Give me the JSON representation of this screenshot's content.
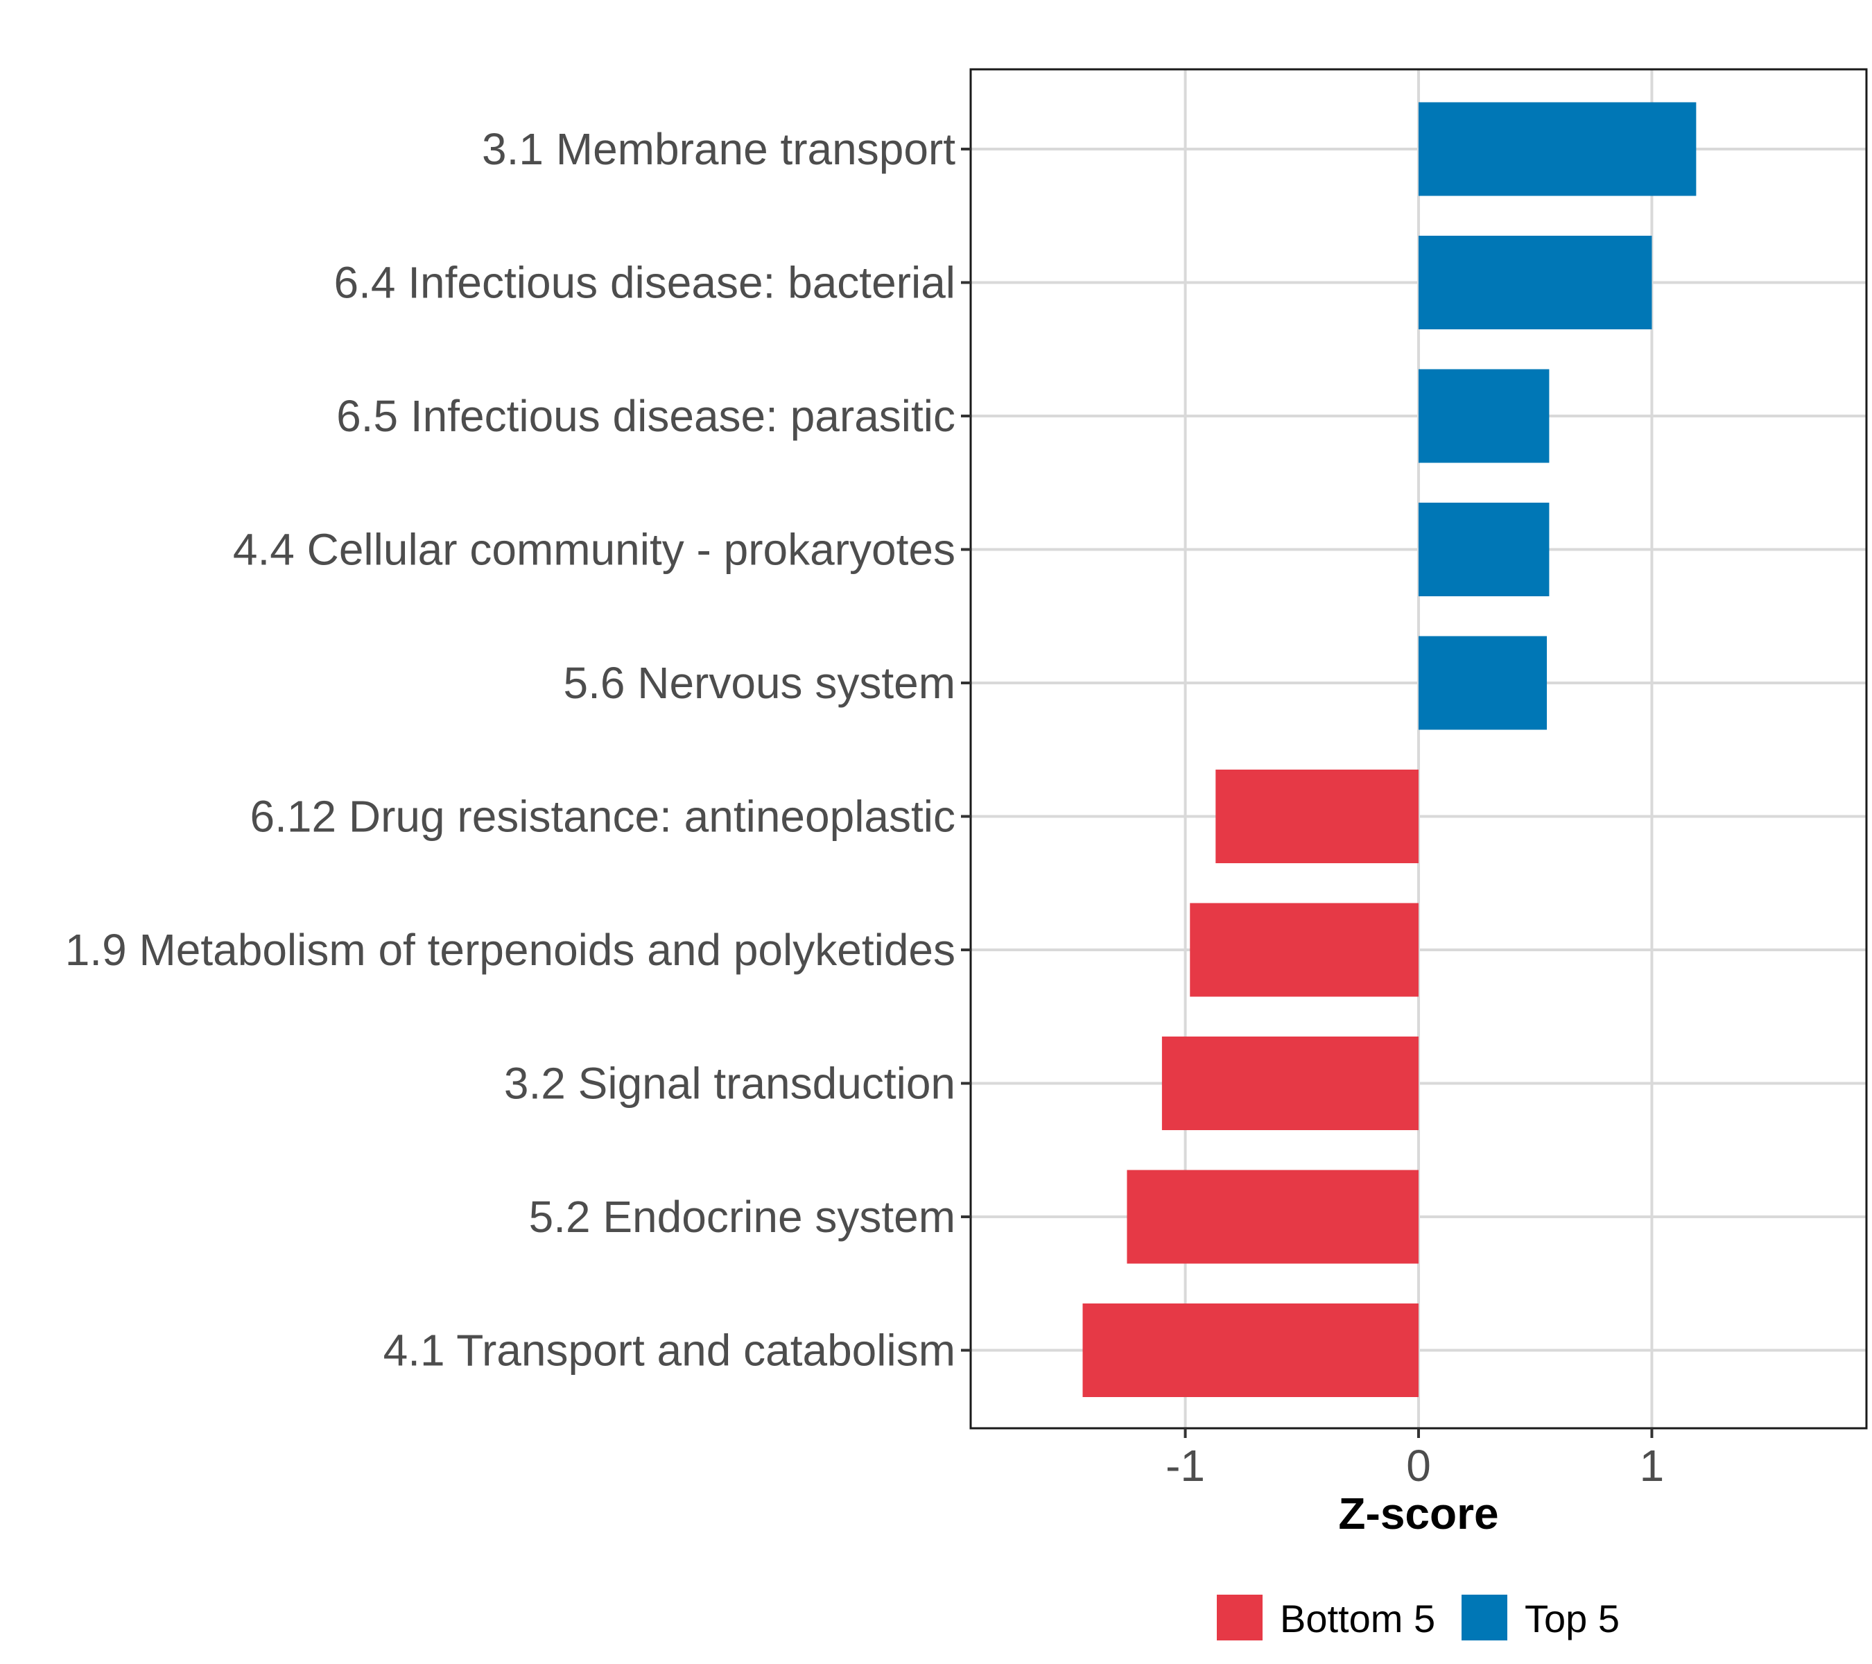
{
  "chart_data": {
    "type": "bar",
    "orientation": "horizontal",
    "categories": [
      "3.1 Membrane transport",
      "6.4 Infectious disease: bacterial",
      "6.5 Infectious disease: parasitic",
      "4.4 Cellular community - prokaryotes",
      "5.6 Nervous system",
      "6.12 Drug resistance: antineoplastic",
      "1.9 Metabolism of terpenoids and polyketides",
      "3.2 Signal transduction",
      "5.2 Endocrine system",
      "4.1 Transport and catabolism"
    ],
    "values": [
      1.19,
      1.0,
      0.56,
      0.56,
      0.55,
      -0.87,
      -0.98,
      -1.1,
      -1.25,
      -1.44
    ],
    "groups": [
      "Top 5",
      "Top 5",
      "Top 5",
      "Top 5",
      "Top 5",
      "Bottom 5",
      "Bottom 5",
      "Bottom 5",
      "Bottom 5",
      "Bottom 5"
    ],
    "xlabel": "Z-score",
    "ylabel": "",
    "title": "",
    "xlim": [
      -1.92,
      1.92
    ],
    "xticks": [
      -1,
      0,
      1
    ],
    "xtick_labels": [
      "-1",
      "0",
      "1"
    ],
    "grid": true,
    "legend": {
      "position": "bottom",
      "entries": [
        {
          "label": "Bottom 5",
          "color": "#e63946"
        },
        {
          "label": "Top 5",
          "color": "#0077b6"
        }
      ]
    },
    "colors": {
      "Top 5": "#0077b6",
      "Bottom 5": "#e63946"
    }
  }
}
